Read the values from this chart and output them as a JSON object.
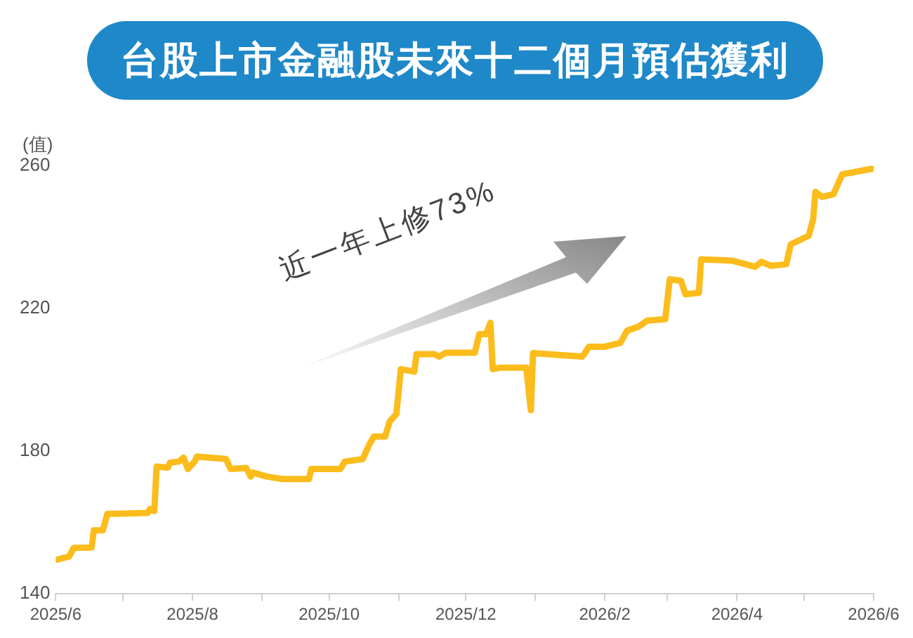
{
  "chart_data": {
    "type": "line",
    "title": "台股上市金融股未來十二個月預估獲利",
    "ylabel": "(值)",
    "annotations": [
      "近一年上修73%"
    ],
    "x": [
      "2025-06-01",
      "2025-06-07",
      "2025-06-09",
      "2025-06-17",
      "2025-06-18",
      "2025-06-22",
      "2025-06-24",
      "2025-07-12",
      "2025-07-13",
      "2025-07-15",
      "2025-07-16",
      "2025-07-21",
      "2025-07-22",
      "2025-07-26",
      "2025-07-28",
      "2025-07-30",
      "2025-08-02",
      "2025-08-03",
      "2025-08-16",
      "2025-08-18",
      "2025-08-25",
      "2025-08-27",
      "2025-08-28",
      "2025-09-03",
      "2025-09-10",
      "2025-09-22",
      "2025-09-23",
      "2025-10-06",
      "2025-10-08",
      "2025-10-16",
      "2025-10-19",
      "2025-10-21",
      "2025-10-26",
      "2025-10-28",
      "2025-10-31",
      "2025-11-02",
      "2025-11-08",
      "2025-11-09",
      "2025-11-17",
      "2025-11-19",
      "2025-11-22",
      "2025-12-05",
      "2025-12-07",
      "2025-12-10",
      "2025-12-12",
      "2025-12-13",
      "2025-12-16",
      "2025-12-28",
      "2025-12-30",
      "2025-12-31",
      "2026-01-22",
      "2026-01-25",
      "2026-02-01",
      "2026-02-08",
      "2026-02-11",
      "2026-02-16",
      "2026-02-20",
      "2026-02-28",
      "2026-03-02",
      "2026-03-07",
      "2026-03-09",
      "2026-03-15",
      "2026-03-16",
      "2026-03-30",
      "2026-04-09",
      "2026-04-12",
      "2026-04-16",
      "2026-04-23",
      "2026-04-25",
      "2026-05-03",
      "2026-05-05",
      "2026-05-06",
      "2026-05-09",
      "2026-05-14",
      "2026-05-18",
      "2026-06-01"
    ],
    "series": [
      {
        "color": "#fbbc1c",
        "values": [
          149.5,
          150.5,
          152.9,
          153.0,
          157.8,
          157.8,
          162.4,
          162.7,
          163.8,
          163.2,
          175.7,
          175.4,
          176.8,
          177.1,
          178.2,
          175.0,
          177.1,
          178.5,
          177.8,
          175.0,
          175.3,
          172.9,
          174.0,
          172.9,
          172.2,
          172.2,
          175.0,
          175.0,
          177.1,
          177.8,
          182.0,
          184.1,
          184.1,
          188.3,
          190.4,
          203.0,
          202.3,
          207.2,
          207.2,
          206.5,
          207.6,
          207.6,
          212.8,
          212.8,
          216.0,
          203.0,
          203.4,
          203.4,
          191.5,
          207.5,
          206.5,
          209.3,
          209.3,
          210.4,
          213.8,
          214.9,
          216.6,
          217.0,
          228.2,
          227.8,
          224.0,
          224.4,
          233.8,
          233.4,
          231.7,
          233.1,
          232.0,
          232.4,
          238.0,
          240.4,
          245.0,
          252.7,
          251.3,
          252.0,
          257.6,
          259.3
        ]
      }
    ],
    "xlim": [
      "2025-06-01",
      "2026-06-01"
    ],
    "xticks": [
      {
        "value": "2025-06-01",
        "label": "2025/6"
      },
      {
        "value": "2025-07-01",
        "label": null
      },
      {
        "value": "2025-08-01",
        "label": "2025/8"
      },
      {
        "value": "2025-09-01",
        "label": null
      },
      {
        "value": "2025-10-01",
        "label": "2025/10"
      },
      {
        "value": "2025-11-01",
        "label": null
      },
      {
        "value": "2025-12-01",
        "label": "2025/12"
      },
      {
        "value": "2026-01-01",
        "label": null
      },
      {
        "value": "2026-02-01",
        "label": "2026/2"
      },
      {
        "value": "2026-03-01",
        "label": null
      },
      {
        "value": "2026-04-01",
        "label": "2026/4"
      },
      {
        "value": "2026-05-01",
        "label": null
      },
      {
        "value": "2026-06-01",
        "label": "2026/6"
      }
    ],
    "ylim": [
      140,
      260
    ],
    "yticks": [
      140,
      180,
      220,
      260
    ],
    "grid": false,
    "legend": false,
    "marker": "none",
    "line_style": "solid"
  }
}
